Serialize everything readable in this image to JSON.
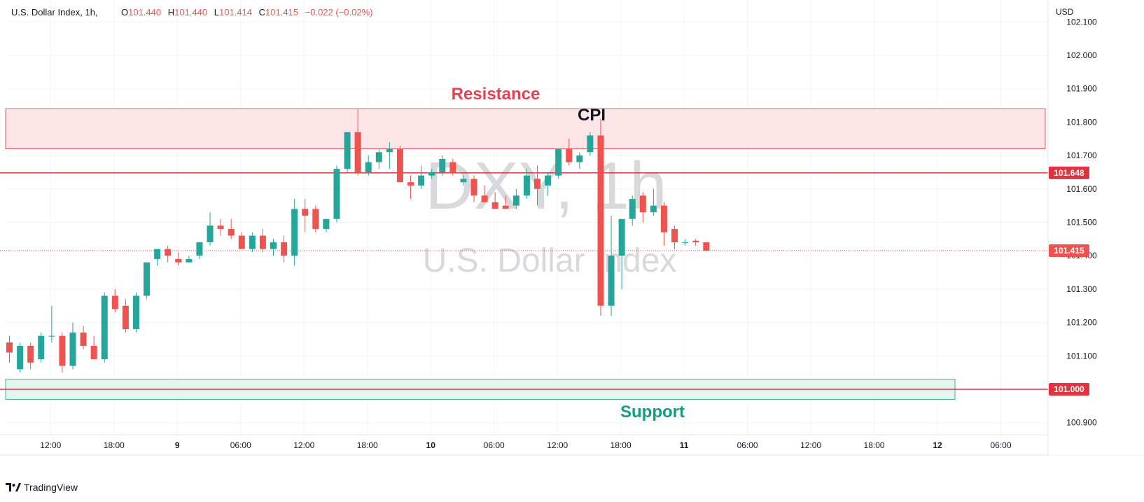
{
  "header": {
    "symbol": "U.S. Dollar Index, 1h,",
    "open_label": "O",
    "open": "101.440",
    "high_label": "H",
    "high": "101.440",
    "low_label": "L",
    "low": "101.414",
    "close_label": "C",
    "close": "101.415",
    "change": "−0.022 (−0.02%)"
  },
  "watermark": {
    "ticker": "DXY, 1h",
    "name": "U.S. Dollar Index"
  },
  "axis": {
    "currency": "USD"
  },
  "annotations": {
    "resistance": "Resistance",
    "support": "Support",
    "cpi": "CPI"
  },
  "footer": {
    "brand": "TradingView"
  },
  "colors": {
    "up": "#26a69a",
    "down": "#ef5350",
    "resistance_fill": "#fde4e6",
    "support_fill": "#e4f5f0",
    "level_line": "#e0323f"
  },
  "chart_data": {
    "type": "candlestick",
    "ylim": [
      100.85,
      102.1
    ],
    "y_ticks": [
      "102.100",
      "102.000",
      "101.900",
      "101.800",
      "101.700",
      "101.600",
      "101.500",
      "101.400",
      "101.300",
      "101.200",
      "101.100",
      "100.900"
    ],
    "x_ticks": [
      {
        "i": 4,
        "label": "12:00"
      },
      {
        "i": 10,
        "label": "18:00"
      },
      {
        "i": 16,
        "label": "9"
      },
      {
        "i": 22,
        "label": "06:00"
      },
      {
        "i": 28,
        "label": "12:00"
      },
      {
        "i": 34,
        "label": "18:00"
      },
      {
        "i": 40,
        "label": "10"
      },
      {
        "i": 46,
        "label": "06:00"
      },
      {
        "i": 52,
        "label": "12:00"
      },
      {
        "i": 58,
        "label": "18:00"
      },
      {
        "i": 64,
        "label": "11"
      },
      {
        "i": 70,
        "label": "06:00"
      },
      {
        "i": 76,
        "label": "12:00"
      },
      {
        "i": 82,
        "label": "18:00"
      },
      {
        "i": 88,
        "label": "12"
      },
      {
        "i": 94,
        "label": "06:00"
      }
    ],
    "candles": [
      [
        101.14,
        101.16,
        101.08,
        101.11
      ],
      [
        101.06,
        101.14,
        101.05,
        101.13
      ],
      [
        101.13,
        101.14,
        101.06,
        101.08
      ],
      [
        101.09,
        101.17,
        101.08,
        101.16
      ],
      [
        101.16,
        101.25,
        101.14,
        101.16
      ],
      [
        101.16,
        101.17,
        101.05,
        101.07
      ],
      [
        101.07,
        101.2,
        101.06,
        101.17
      ],
      [
        101.17,
        101.19,
        101.12,
        101.13
      ],
      [
        101.13,
        101.16,
        101.09,
        101.09
      ],
      [
        101.09,
        101.29,
        101.08,
        101.28
      ],
      [
        101.28,
        101.3,
        101.23,
        101.24
      ],
      [
        101.25,
        101.27,
        101.17,
        101.18
      ],
      [
        101.18,
        101.29,
        101.17,
        101.28
      ],
      [
        101.28,
        101.38,
        101.27,
        101.38
      ],
      [
        101.39,
        101.42,
        101.37,
        101.42
      ],
      [
        101.42,
        101.43,
        101.38,
        101.4
      ],
      [
        101.39,
        101.41,
        101.37,
        101.38
      ],
      [
        101.38,
        101.4,
        101.38,
        101.39
      ],
      [
        101.4,
        101.44,
        101.39,
        101.44
      ],
      [
        101.44,
        101.53,
        101.43,
        101.49
      ],
      [
        101.49,
        101.51,
        101.46,
        101.48
      ],
      [
        101.48,
        101.51,
        101.45,
        101.46
      ],
      [
        101.46,
        101.47,
        101.42,
        101.42
      ],
      [
        101.42,
        101.47,
        101.41,
        101.46
      ],
      [
        101.46,
        101.48,
        101.41,
        101.42
      ],
      [
        101.42,
        101.45,
        101.4,
        101.44
      ],
      [
        101.44,
        101.46,
        101.38,
        101.4
      ],
      [
        101.4,
        101.57,
        101.37,
        101.54
      ],
      [
        101.54,
        101.57,
        101.47,
        101.52
      ],
      [
        101.54,
        101.55,
        101.47,
        101.48
      ],
      [
        101.48,
        101.51,
        101.47,
        101.51
      ],
      [
        101.51,
        101.67,
        101.5,
        101.66
      ],
      [
        101.66,
        101.77,
        101.65,
        101.77
      ],
      [
        101.77,
        101.84,
        101.64,
        101.65
      ],
      [
        101.65,
        101.7,
        101.64,
        101.68
      ],
      [
        101.68,
        101.72,
        101.66,
        101.71
      ],
      [
        101.71,
        101.74,
        101.66,
        101.72
      ],
      [
        101.72,
        101.73,
        101.62,
        101.62
      ],
      [
        101.62,
        101.64,
        101.57,
        101.61
      ],
      [
        101.61,
        101.67,
        101.6,
        101.64
      ],
      [
        101.64,
        101.66,
        101.63,
        101.65
      ],
      [
        101.65,
        101.7,
        101.64,
        101.69
      ],
      [
        101.68,
        101.69,
        101.64,
        101.65
      ],
      [
        101.62,
        101.64,
        101.61,
        101.63
      ],
      [
        101.63,
        101.64,
        101.56,
        101.58
      ],
      [
        101.58,
        101.61,
        101.56,
        101.56
      ],
      [
        101.56,
        101.59,
        101.54,
        101.54
      ],
      [
        101.55,
        101.58,
        101.54,
        101.54
      ],
      [
        101.55,
        101.6,
        101.54,
        101.58
      ],
      [
        101.58,
        101.66,
        101.57,
        101.64
      ],
      [
        101.63,
        101.67,
        101.55,
        101.6
      ],
      [
        101.61,
        101.65,
        101.58,
        101.64
      ],
      [
        101.64,
        101.72,
        101.63,
        101.72
      ],
      [
        101.72,
        101.75,
        101.67,
        101.68
      ],
      [
        101.68,
        101.71,
        101.66,
        101.7
      ],
      [
        101.71,
        101.77,
        101.7,
        101.76
      ],
      [
        101.76,
        101.81,
        101.22,
        101.25
      ],
      [
        101.25,
        101.52,
        101.22,
        101.4
      ],
      [
        101.4,
        101.51,
        101.3,
        101.51
      ],
      [
        101.51,
        101.58,
        101.49,
        101.57
      ],
      [
        101.58,
        101.59,
        101.5,
        101.53
      ],
      [
        101.53,
        101.6,
        101.52,
        101.55
      ],
      [
        101.55,
        101.56,
        101.43,
        101.47
      ],
      [
        101.48,
        101.49,
        101.42,
        101.44
      ],
      [
        101.44,
        101.45,
        101.43,
        101.44
      ],
      [
        101.445,
        101.45,
        101.43,
        101.44
      ],
      [
        101.44,
        101.44,
        101.414,
        101.415
      ]
    ],
    "resistance_zone": [
      101.72,
      101.84
    ],
    "support_zone": [
      100.97,
      101.03
    ],
    "levels": [
      {
        "value": 101.648,
        "label": "101.648"
      },
      {
        "value": 101.0,
        "label": "101.000"
      }
    ],
    "last_price": {
      "value": 101.415,
      "label": "101.415"
    }
  }
}
